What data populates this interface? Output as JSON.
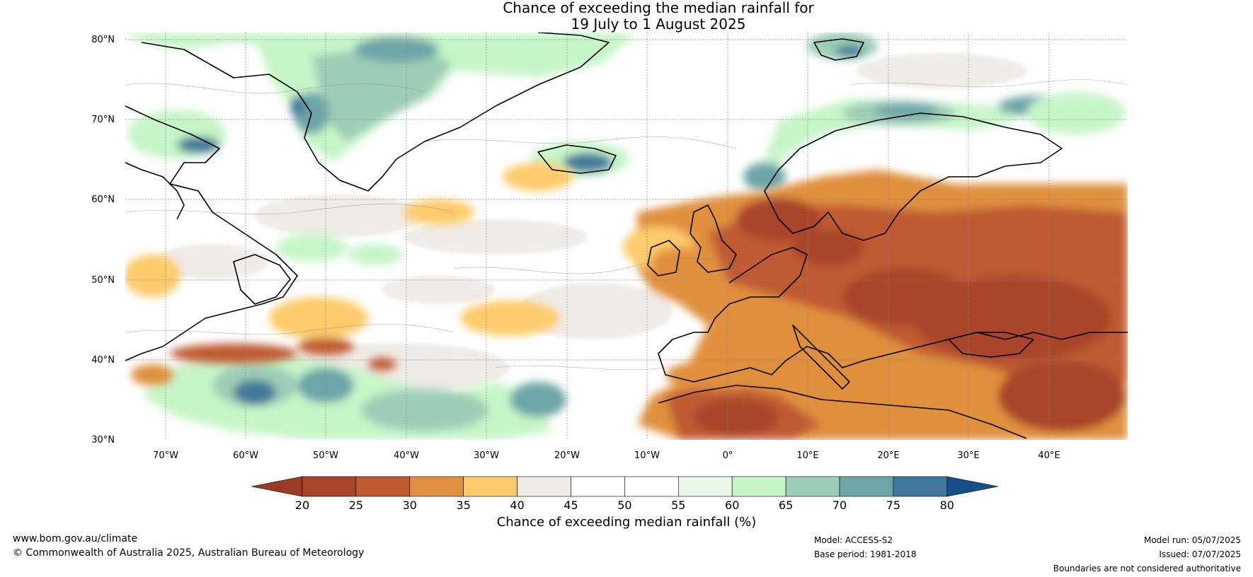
{
  "title": {
    "line1": "Chance of exceeding the median rainfall for",
    "line2": "19 July to 1 August 2025"
  },
  "map": {
    "lat_labels": [
      "80°N",
      "70°N",
      "60°N",
      "50°N",
      "40°N",
      "30°N"
    ],
    "lon_labels": [
      "70°W",
      "60°W",
      "50°W",
      "40°W",
      "30°W",
      "20°W",
      "10°W",
      "0°",
      "10°E",
      "20°E",
      "30°E",
      "40°E"
    ],
    "lat_range": [
      30,
      81
    ],
    "lon_range": [
      -75,
      50
    ],
    "regions_dry": [
      "Europe",
      "Mediterranean",
      "Eastern Europe",
      "North Africa"
    ],
    "regions_wet": [
      "Greenland",
      "Norway",
      "Iceland",
      "Western Atlantic"
    ]
  },
  "colorbar": {
    "ticks": [
      "20",
      "25",
      "30",
      "35",
      "40",
      "45",
      "50",
      "55",
      "60",
      "65",
      "70",
      "75",
      "80"
    ],
    "colors": [
      "#a8442a",
      "#c05a30",
      "#e0903e",
      "#fdcb6a",
      "#f0ebe6",
      "#ffffff",
      "#ffffff",
      "#e8f6e8",
      "#c6f5c8",
      "#9ccdb6",
      "#6da5a8",
      "#43789a"
    ],
    "under_color": "#9b3b24",
    "over_color": "#16508a",
    "label": "Chance of exceeding median rainfall (%)"
  },
  "footer": {
    "website": "www.bom.gov.au/climate",
    "copyright": "© Commonwealth of Australia 2025, Australian Bureau of Meteorology",
    "model": "Model: ACCESS-S2",
    "base_period": "Base period: 1981-2018",
    "model_run": "Model run: 05/07/2025",
    "issued": "Issued: 07/07/2025",
    "disclaimer": "Boundaries are not considered authoritative"
  }
}
